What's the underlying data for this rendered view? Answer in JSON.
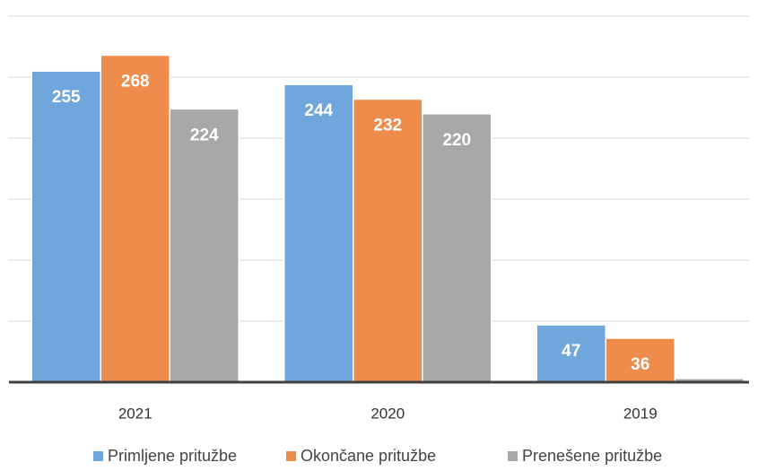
{
  "chart_data": {
    "type": "bar",
    "categories": [
      "2021",
      "2020",
      "2019"
    ],
    "series": [
      {
        "name": "Primljene pritužbe",
        "color": "#6fa6db",
        "values": [
          255,
          244,
          47
        ]
      },
      {
        "name": "Okončane pritužbe",
        "color": "#ef8c4b",
        "values": [
          268,
          232,
          36
        ]
      },
      {
        "name": "Prenešene pritužbe",
        "color": "#a8a8a8",
        "values": [
          224,
          220,
          3
        ]
      }
    ],
    "ylim": [
      0,
      300
    ],
    "yticks": [
      0,
      50,
      100,
      150,
      200,
      250,
      300
    ],
    "grid": true,
    "legend": "bottom"
  }
}
